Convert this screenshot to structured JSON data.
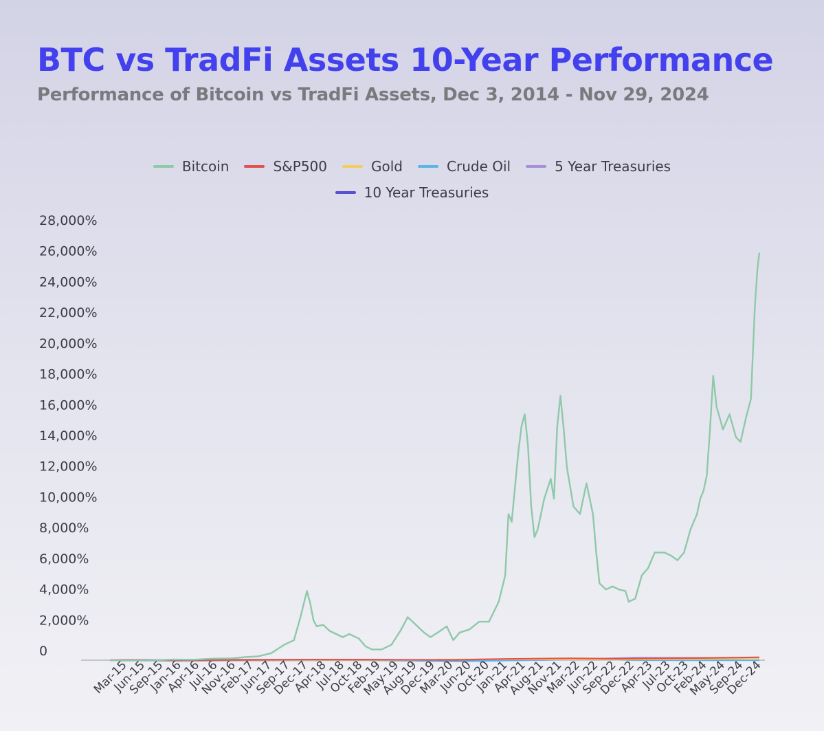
{
  "chart_data": {
    "type": "line",
    "title": "BTC vs TradFi Assets 10-Year Performance",
    "subtitle": "Performance of Bitcoin vs TradFi Assets, Dec 3, 2014 - Nov 29, 2024",
    "xlabel": "",
    "ylabel": "",
    "ylim": [
      0,
      28000
    ],
    "y_ticks": [
      "0",
      "2,000%",
      "4,000%",
      "6,000%",
      "8,000%",
      "10,000%",
      "12,000%",
      "14,000%",
      "16,000%",
      "18,000%",
      "20,000%",
      "22,000%",
      "24,000%",
      "26,000%",
      "28,000%"
    ],
    "x_ticks": [
      "Mar-15",
      "Jun-15",
      "Sep-15",
      "Jan-16",
      "Apr-16",
      "Jul-16",
      "Nov-16",
      "Feb-17",
      "Jun-17",
      "Sep-17",
      "Dec-17",
      "Apr-18",
      "Jul-18",
      "Oct-18",
      "Feb-19",
      "May-19",
      "Aug-19",
      "Dec-19",
      "Mar-20",
      "Jun-20",
      "Oct-20",
      "Jan-21",
      "Apr-21",
      "Aug-21",
      "Nov-21",
      "Mar-22",
      "Jun-22",
      "Sep-22",
      "Dec-22",
      "Apr-23",
      "Jul-23",
      "Oct-23",
      "Feb-24",
      "May-24",
      "Sep-24",
      "Dec-24"
    ],
    "xlim": [
      2014.92,
      2024.91
    ],
    "grid": false,
    "legend_position": "top-center",
    "series": [
      {
        "name": "Bitcoin",
        "color": "#8ec9a8",
        "points": [
          [
            2014.92,
            0
          ],
          [
            2015.1,
            -30
          ],
          [
            2015.5,
            -20
          ],
          [
            2015.9,
            40
          ],
          [
            2016.2,
            30
          ],
          [
            2016.5,
            100
          ],
          [
            2016.8,
            120
          ],
          [
            2017.0,
            200
          ],
          [
            2017.2,
            250
          ],
          [
            2017.4,
            450
          ],
          [
            2017.6,
            1000
          ],
          [
            2017.75,
            1300
          ],
          [
            2017.85,
            2800
          ],
          [
            2017.95,
            4500
          ],
          [
            2018.0,
            3700
          ],
          [
            2018.05,
            2600
          ],
          [
            2018.1,
            2200
          ],
          [
            2018.2,
            2300
          ],
          [
            2018.3,
            1900
          ],
          [
            2018.4,
            1700
          ],
          [
            2018.5,
            1500
          ],
          [
            2018.6,
            1700
          ],
          [
            2018.75,
            1400
          ],
          [
            2018.85,
            900
          ],
          [
            2018.95,
            700
          ],
          [
            2019.1,
            700
          ],
          [
            2019.25,
            1000
          ],
          [
            2019.4,
            2000
          ],
          [
            2019.5,
            2800
          ],
          [
            2019.6,
            2400
          ],
          [
            2019.75,
            1800
          ],
          [
            2019.85,
            1500
          ],
          [
            2020.0,
            1900
          ],
          [
            2020.1,
            2200
          ],
          [
            2020.2,
            1300
          ],
          [
            2020.3,
            1800
          ],
          [
            2020.45,
            2000
          ],
          [
            2020.6,
            2500
          ],
          [
            2020.75,
            2500
          ],
          [
            2020.9,
            3800
          ],
          [
            2021.0,
            5500
          ],
          [
            2021.05,
            9500
          ],
          [
            2021.1,
            9000
          ],
          [
            2021.2,
            13500
          ],
          [
            2021.25,
            15200
          ],
          [
            2021.3,
            16000
          ],
          [
            2021.35,
            14000
          ],
          [
            2021.4,
            10000
          ],
          [
            2021.45,
            8000
          ],
          [
            2021.5,
            8500
          ],
          [
            2021.6,
            10500
          ],
          [
            2021.7,
            11800
          ],
          [
            2021.75,
            10500
          ],
          [
            2021.8,
            15200
          ],
          [
            2021.85,
            17200
          ],
          [
            2021.9,
            15000
          ],
          [
            2021.95,
            12500
          ],
          [
            2022.05,
            10000
          ],
          [
            2022.15,
            9500
          ],
          [
            2022.25,
            11500
          ],
          [
            2022.35,
            9500
          ],
          [
            2022.4,
            7000
          ],
          [
            2022.45,
            5000
          ],
          [
            2022.55,
            4600
          ],
          [
            2022.65,
            4800
          ],
          [
            2022.75,
            4600
          ],
          [
            2022.85,
            4500
          ],
          [
            2022.9,
            3800
          ],
          [
            2023.0,
            4000
          ],
          [
            2023.1,
            5500
          ],
          [
            2023.2,
            6000
          ],
          [
            2023.3,
            7000
          ],
          [
            2023.45,
            7000
          ],
          [
            2023.55,
            6800
          ],
          [
            2023.65,
            6500
          ],
          [
            2023.75,
            7000
          ],
          [
            2023.85,
            8500
          ],
          [
            2023.95,
            9500
          ],
          [
            2024.0,
            10500
          ],
          [
            2024.05,
            11000
          ],
          [
            2024.1,
            12000
          ],
          [
            2024.15,
            15000
          ],
          [
            2024.2,
            18500
          ],
          [
            2024.25,
            16500
          ],
          [
            2024.35,
            15000
          ],
          [
            2024.45,
            16000
          ],
          [
            2024.55,
            14500
          ],
          [
            2024.62,
            14200
          ],
          [
            2024.7,
            15700
          ],
          [
            2024.78,
            17000
          ],
          [
            2024.84,
            23000
          ],
          [
            2024.88,
            25500
          ],
          [
            2024.91,
            26500
          ]
        ]
      },
      {
        "name": "S&P500",
        "color": "#e05252",
        "points": [
          [
            2014.92,
            0
          ],
          [
            2016.0,
            -5
          ],
          [
            2017.0,
            15
          ],
          [
            2018.0,
            35
          ],
          [
            2019.0,
            30
          ],
          [
            2020.2,
            20
          ],
          [
            2021.0,
            80
          ],
          [
            2022.0,
            120
          ],
          [
            2022.8,
            90
          ],
          [
            2024.0,
            140
          ],
          [
            2024.91,
            190
          ]
        ]
      },
      {
        "name": "Gold",
        "color": "#f2cf5b",
        "points": [
          [
            2014.92,
            0
          ],
          [
            2016.0,
            -10
          ],
          [
            2017.0,
            5
          ],
          [
            2018.0,
            10
          ],
          [
            2019.5,
            20
          ],
          [
            2020.6,
            60
          ],
          [
            2021.5,
            50
          ],
          [
            2022.8,
            40
          ],
          [
            2024.0,
            70
          ],
          [
            2024.91,
            120
          ]
        ]
      },
      {
        "name": "Crude Oil",
        "color": "#5db5e6",
        "points": [
          [
            2014.92,
            0
          ],
          [
            2016.0,
            -50
          ],
          [
            2017.0,
            -20
          ],
          [
            2018.8,
            0
          ],
          [
            2020.3,
            -80
          ],
          [
            2021.0,
            -20
          ],
          [
            2022.4,
            60
          ],
          [
            2023.0,
            0
          ],
          [
            2024.91,
            -10
          ]
        ]
      },
      {
        "name": "5 Year Treasuries",
        "color": "#a78fd8",
        "points": [
          [
            2014.92,
            0
          ],
          [
            2017.0,
            40
          ],
          [
            2019.0,
            40
          ],
          [
            2020.5,
            -60
          ],
          [
            2022.0,
            40
          ],
          [
            2023.0,
            160
          ],
          [
            2024.91,
            140
          ]
        ]
      },
      {
        "name": "10 Year Treasuries",
        "color": "#5a4fcf",
        "points": [
          [
            2014.92,
            0
          ],
          [
            2017.0,
            30
          ],
          [
            2019.0,
            20
          ],
          [
            2020.5,
            -50
          ],
          [
            2022.0,
            50
          ],
          [
            2023.0,
            100
          ],
          [
            2024.91,
            120
          ]
        ]
      }
    ]
  }
}
